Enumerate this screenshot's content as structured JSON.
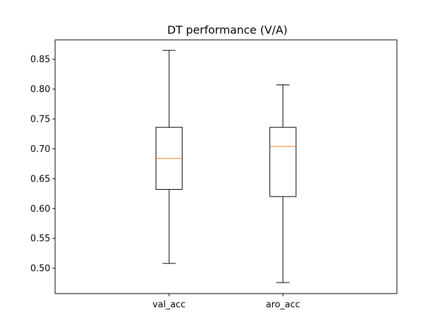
{
  "chart_data": {
    "type": "box",
    "title": "DT performance (V/A)",
    "xlabel": "",
    "ylabel": "",
    "ylim": [
      0.4575,
      0.8825
    ],
    "yticks": [
      0.5,
      0.55,
      0.6,
      0.65,
      0.7,
      0.75,
      0.8,
      0.85
    ],
    "ytick_labels": [
      "0.50",
      "0.55",
      "0.60",
      "0.65",
      "0.70",
      "0.75",
      "0.80",
      "0.85"
    ],
    "categories": [
      "val_acc",
      "aro_acc"
    ],
    "boxes": [
      {
        "label": "val_acc",
        "whislo": 0.508,
        "q1": 0.632,
        "med": 0.684,
        "q3": 0.736,
        "whishi": 0.865
      },
      {
        "label": "aro_acc",
        "whislo": 0.476,
        "q1": 0.62,
        "med": 0.704,
        "q3": 0.736,
        "whishi": 0.807
      }
    ],
    "grid": false,
    "colors": {
      "box": "#000000",
      "median": "#ff7f0e",
      "frame": "#000000"
    }
  }
}
